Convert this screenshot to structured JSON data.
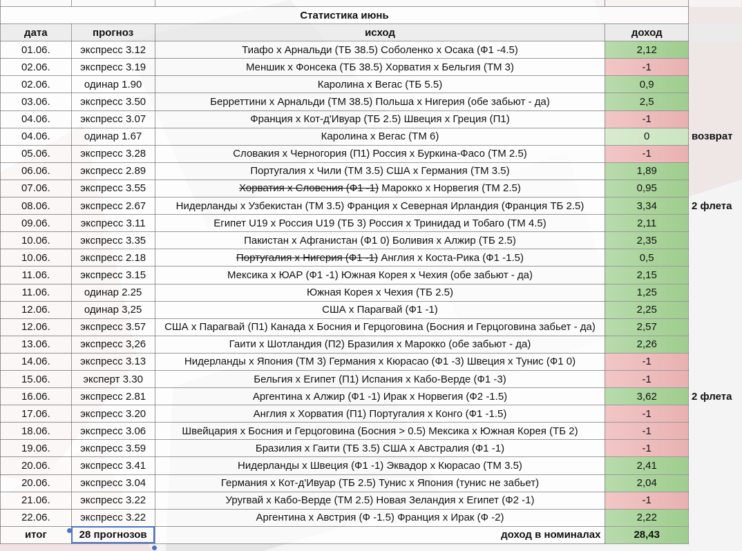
{
  "sheet": {
    "title": "Статистика июнь",
    "headers": {
      "date": "дата",
      "forecast": "прогноз",
      "outcome": "исход",
      "income": "доход"
    },
    "rows": [
      {
        "date": "01.06.",
        "forecast": "экспресс 3.12",
        "struck": "",
        "outcome": "Тиафо х Арнальди (ТБ 38.5) Соболенко х Осака (Ф1 -4.5)",
        "income": "2,12",
        "status": "pos",
        "note": ""
      },
      {
        "date": "02.06.",
        "forecast": "экспресс 3.19",
        "struck": "",
        "outcome": "Меншик х Фонсека (ТБ 38.5) Хорватия х Бельгия (ТМ 3)",
        "income": "-1",
        "status": "neg",
        "note": ""
      },
      {
        "date": "02.06.",
        "forecast": "одинар 1.90",
        "struck": "",
        "outcome": "Каролина х Вегас (ТБ 5.5)",
        "income": "0,9",
        "status": "pos",
        "note": ""
      },
      {
        "date": "03.06.",
        "forecast": "экспресс 3.50",
        "struck": "",
        "outcome": "Берреттини х Арнальди (ТМ 38.5) Польша х Нигерия (обе забьют - да)",
        "income": "2,5",
        "status": "pos",
        "note": ""
      },
      {
        "date": "04.06.",
        "forecast": "экспресс 3.07",
        "struck": "",
        "outcome": "Франция х Кот-д'Ивуар (ТБ 2.5) Швеция х Греция (П1)",
        "income": "-1",
        "status": "neg",
        "note": ""
      },
      {
        "date": "04.06.",
        "forecast": "одинар 1.67",
        "struck": "",
        "outcome": "Каролина х Вегас (ТМ 6)",
        "income": "0",
        "status": "zero",
        "note": "возврат"
      },
      {
        "date": "05.06.",
        "forecast": "экспресс 3.28",
        "struck": "",
        "outcome": "Словакия х Черногория (П1) Россия х Буркина-Фасо (ТМ 2.5)",
        "income": "-1",
        "status": "neg",
        "note": ""
      },
      {
        "date": "06.06.",
        "forecast": "экспресс 2.89",
        "struck": "",
        "outcome": "Португалия х Чили (ТМ 3.5) США х Германия (ТМ 3.5)",
        "income": "1,89",
        "status": "pos",
        "note": ""
      },
      {
        "date": "07.06.",
        "forecast": "экспресс 3.55",
        "struck": "Хорватия х Словения (Ф1 -1)",
        "outcome": "Марокко х Норвегия (ТМ 2.5)",
        "income": "0,95",
        "status": "pos",
        "note": ""
      },
      {
        "date": "08.06.",
        "forecast": "экспресс 2.67",
        "struck": "",
        "outcome": "Нидерланды х Узбекистан (ТМ 3.5) Франция х Северная Ирландия (Франция ТБ 2.5)",
        "income": "3,34",
        "status": "pos",
        "note": "2 флета"
      },
      {
        "date": "09.06.",
        "forecast": "экспресс 3.11",
        "struck": "",
        "outcome": "Египет U19 х Россия U19 (ТБ 3) Россия х Тринидад и Тобаго (ТМ 4.5)",
        "income": "2,11",
        "status": "pos",
        "note": ""
      },
      {
        "date": "10.06.",
        "forecast": "экспресс 3.35",
        "struck": "",
        "outcome": "Пакистан х Афганистан (Ф1 0) Боливия х Алжир (ТБ 2.5)",
        "income": "2,35",
        "status": "pos",
        "note": ""
      },
      {
        "date": "10.06.",
        "forecast": "экспресс 2.18",
        "struck": "Португалия х Нигерия (Ф1 -1)",
        "outcome": "Англия х Коста-Рика (Ф1 -1.5)",
        "income": "0,5",
        "status": "pos",
        "note": ""
      },
      {
        "date": "11.06.",
        "forecast": "экспресс 3.15",
        "struck": "",
        "outcome": "Мексика х ЮАР (Ф1 -1) Южная Корея х Чехия (обе забьют - да)",
        "income": "2,15",
        "status": "pos",
        "note": ""
      },
      {
        "date": "11.06.",
        "forecast": "одинар 2.25",
        "struck": "",
        "outcome": "Южная Корея х Чехия (ТБ 2.5)",
        "income": "1,25",
        "status": "pos",
        "note": ""
      },
      {
        "date": "12.06.",
        "forecast": "одинар 3,25",
        "struck": "",
        "outcome": "США х Парагвай (Ф1 -1)",
        "income": "2,25",
        "status": "pos",
        "note": ""
      },
      {
        "date": "12.06.",
        "forecast": "экспресс 3.57",
        "struck": "",
        "outcome": "США х Парагвай (П1) Канада х Босния и Герцоговина (Босния и Герцоговина забьет - да)",
        "income": "2,57",
        "status": "pos",
        "note": ""
      },
      {
        "date": "13.06.",
        "forecast": "экспресс 3,26",
        "struck": "",
        "outcome": "Гаити х Шотландия (П2) Бразилия х Марокко (обе забьют - да)",
        "income": "2,26",
        "status": "pos",
        "note": ""
      },
      {
        "date": "14.06.",
        "forecast": "экспресс 3.13",
        "struck": "",
        "outcome": "Нидерланды х Япония (ТМ 3) Германия х Кюрасао (Ф1 -3) Швеция х Тунис (Ф1 0)",
        "income": "-1",
        "status": "neg",
        "note": ""
      },
      {
        "date": "15.06.",
        "forecast": "эксперт 3.30",
        "struck": "",
        "outcome": "Бельгия х Египет (П1) Испания х Кабо-Верде (Ф1 -3)",
        "income": "-1",
        "status": "neg",
        "note": ""
      },
      {
        "date": "16.06.",
        "forecast": "экспресс 2.81",
        "struck": "",
        "outcome": "Аргентина х Алжир (Ф1 -1) Ирак х Норвегия (Ф2 -1.5)",
        "income": "3,62",
        "status": "pos",
        "note": "2 флета"
      },
      {
        "date": "17.06.",
        "forecast": "экспресс 3.20",
        "struck": "",
        "outcome": "Англия х Хорватия (П1) Португалия х Конго (Ф1 -1.5)",
        "income": "-1",
        "status": "neg",
        "note": ""
      },
      {
        "date": "18.06.",
        "forecast": "экспресс 3.06",
        "struck": "",
        "outcome": "Швейцария х Босния и Герцоговина (Босния > 0.5) Мексика х Южная Корея (ТБ 2)",
        "income": "-1",
        "status": "neg",
        "note": ""
      },
      {
        "date": "19.06.",
        "forecast": "экспресс 3.59",
        "struck": "",
        "outcome": "Бразилия х Гаити (ТБ 3.5) США х Австралия (Ф1 -1)",
        "income": "-1",
        "status": "neg",
        "note": ""
      },
      {
        "date": "20.06.",
        "forecast": "экспресс 3.41",
        "struck": "",
        "outcome": "Нидерланды х Швеция (Ф1 -1) Эквадор х Кюрасао (ТМ 3.5)",
        "income": "2,41",
        "status": "pos",
        "note": ""
      },
      {
        "date": "20.06.",
        "forecast": "экспресс 3.04",
        "struck": "",
        "outcome": "Германия х Кот-д'Ивуар (ТБ 2.5) Тунис х Япония (тунис не забьет)",
        "income": "2,04",
        "status": "pos",
        "note": ""
      },
      {
        "date": "21.06.",
        "forecast": "экспресс 3.22",
        "struck": "",
        "outcome": "Уругвай х Кабо-Верде (ТМ 2.5) Новая Зеландия х Египет (Ф2 -1)",
        "income": "-1",
        "status": "neg",
        "note": ""
      },
      {
        "date": "22.06.",
        "forecast": "экспресс 3.22",
        "struck": "",
        "outcome": "Аргентина х Австрия (Ф -1.5) Франция х Ирак (Ф -2)",
        "income": "2,22",
        "status": "pos",
        "note": ""
      }
    ],
    "totals": {
      "label": "итог",
      "count": "28 прогнозов",
      "income_label": "доход в номиналах",
      "income": "28,43"
    }
  }
}
